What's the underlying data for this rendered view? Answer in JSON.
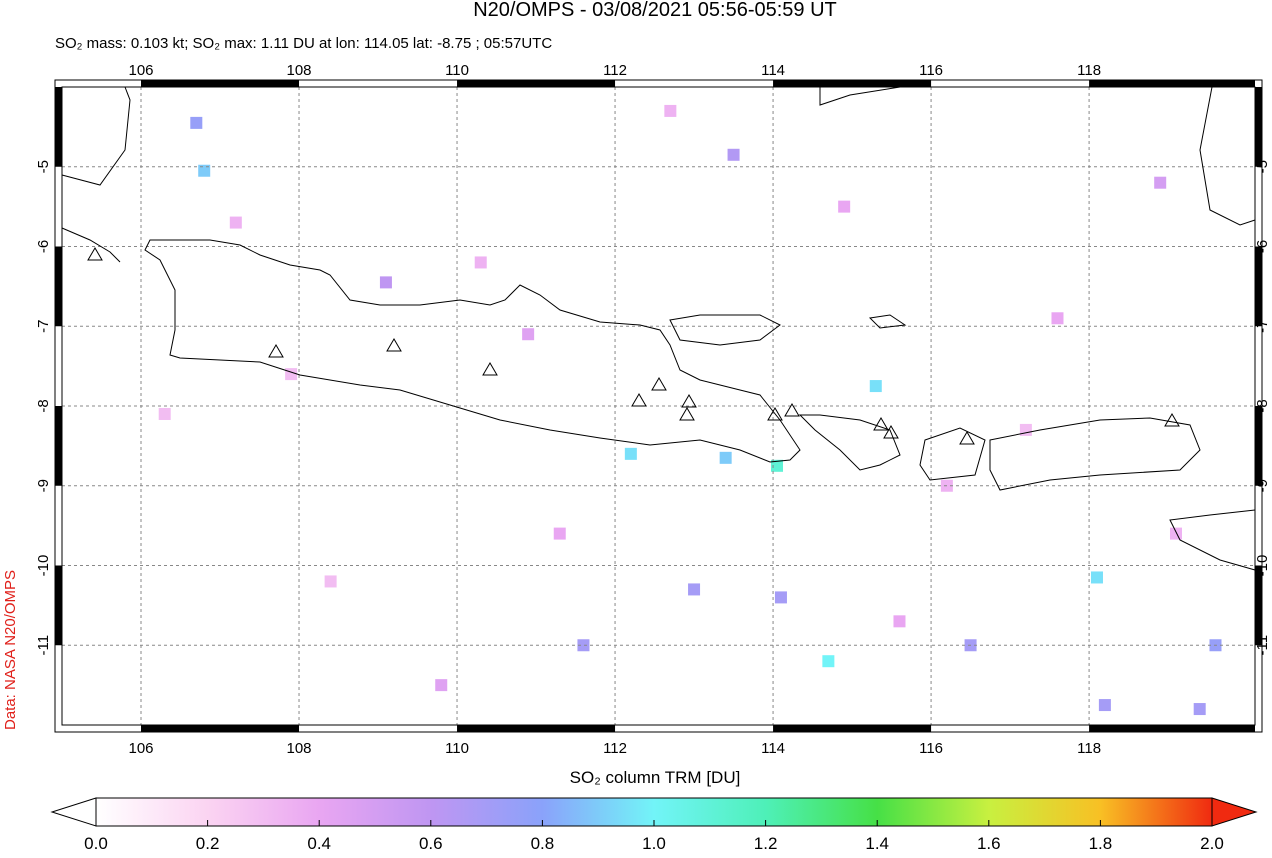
{
  "chart_data": {
    "type": "map",
    "title": "N20/OMPS - 03/08/2021 05:56-05:59 UT",
    "subtitle": "SO₂ mass: 0.103 kt; SO₂ max: 1.11 DU at lon: 114.05 lat: -8.75 ; 05:57UTC",
    "source": "Data: NASA N20/OMPS",
    "colorbar_label": "SO₂ column TRM [DU]",
    "xlim": [
      105,
      120.1
    ],
    "ylim": [
      -12,
      -4
    ],
    "xticks": [
      106,
      108,
      110,
      112,
      114,
      116,
      118
    ],
    "yticks": [
      -5,
      -6,
      -7,
      -8,
      -9,
      -10,
      -11
    ],
    "clim": [
      0,
      2
    ],
    "colors": [
      "#ffffff",
      "#fbd4f2",
      "#e9a6f2",
      "#bf96f2",
      "#8aa2fa",
      "#72f4f8",
      "#4ef0b8",
      "#46e046",
      "#c8f040",
      "#f8c024",
      "#f02a10"
    ],
    "cticks": [
      {
        "value": 0,
        "label": "0.0"
      },
      {
        "value": 0.2,
        "label": "0.2"
      },
      {
        "value": 0.4,
        "label": "0.4"
      },
      {
        "value": 0.6,
        "label": "0.6"
      },
      {
        "value": 0.8,
        "label": "0.8"
      },
      {
        "value": 1,
        "label": "1.0"
      },
      {
        "value": 1.2,
        "label": "1.2"
      },
      {
        "value": 1.4,
        "label": "1.4"
      },
      {
        "value": 1.6,
        "label": "1.6"
      },
      {
        "value": 1.8,
        "label": "1.8"
      },
      {
        "value": 2,
        "label": "2.0"
      }
    ],
    "pixels": {
      "lon": [
        114.05,
        114.7,
        106.8,
        106.7,
        112.2,
        113.4,
        115.3,
        118.1,
        119.6,
        118.2,
        113.0,
        111.6,
        114.1,
        116.5,
        119.4,
        107.2,
        109.1,
        111.3,
        113.5,
        117.6,
        108.4,
        110.9,
        116.2,
        118.9,
        106.3,
        112.7,
        115.6,
        117.2,
        109.8,
        119.1,
        114.9,
        107.9,
        110.3
      ],
      "lat": [
        -8.75,
        -11.2,
        -5.05,
        -4.45,
        -8.6,
        -8.65,
        -7.75,
        -10.15,
        -11.0,
        -11.75,
        -10.3,
        -11.0,
        -10.4,
        -11.0,
        -11.8,
        -5.7,
        -6.45,
        -9.6,
        -4.85,
        -6.9,
        -10.2,
        -7.1,
        -9.0,
        -5.2,
        -8.1,
        -4.3,
        -10.7,
        -8.3,
        -11.5,
        -9.6,
        -5.5,
        -7.6,
        -6.2
      ],
      "so2": [
        1.11,
        1.0,
        0.9,
        0.75,
        0.95,
        0.9,
        0.95,
        0.95,
        0.75,
        0.7,
        0.7,
        0.7,
        0.7,
        0.7,
        0.7,
        0.35,
        0.6,
        0.4,
        0.65,
        0.4,
        0.3,
        0.45,
        0.35,
        0.5,
        0.3,
        0.35,
        0.4,
        0.3,
        0.45,
        0.35,
        0.4,
        0.3,
        0.35
      ]
    }
  }
}
